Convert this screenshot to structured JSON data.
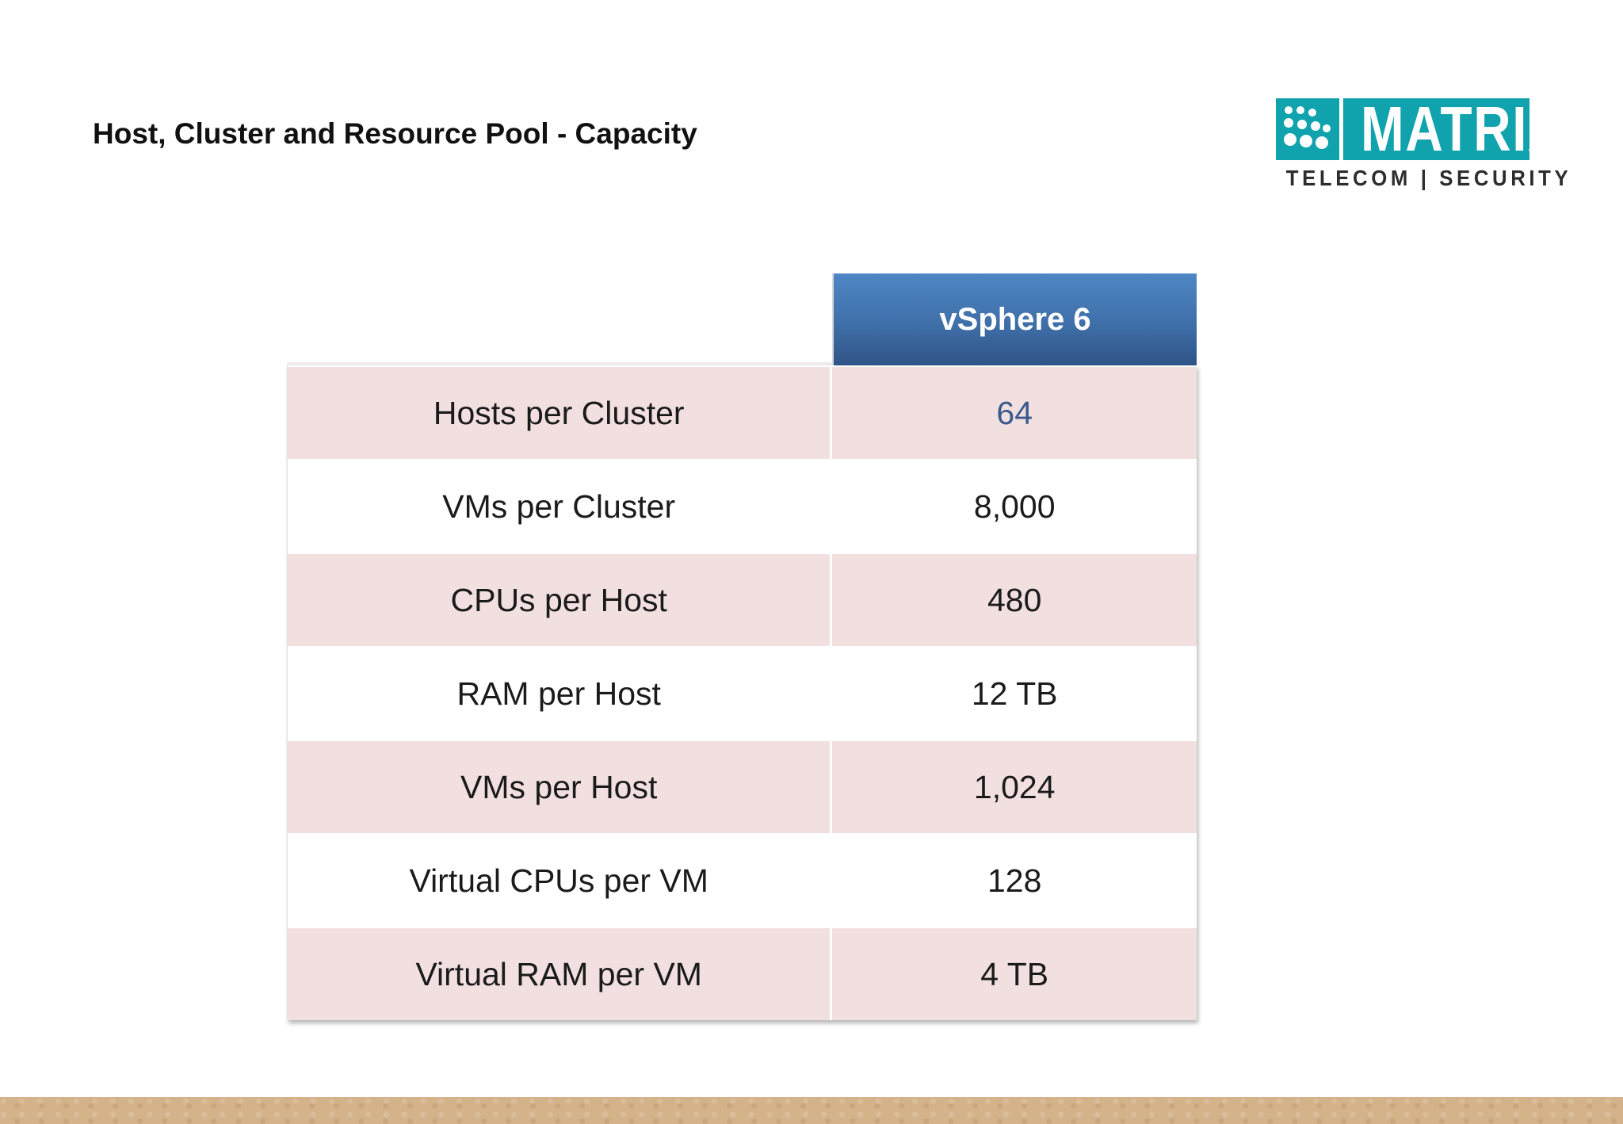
{
  "slide": {
    "title": "Host, Cluster and Resource Pool - Capacity"
  },
  "logo": {
    "brand": "MATRIX",
    "tagline": "TELECOM | SECURITY",
    "color": "#10a3ad"
  },
  "table": {
    "column_header": "vSphere 6",
    "header_color": "#3f6fa8",
    "band_color": "#f2dfe0",
    "rows": [
      {
        "label": "Hosts per Cluster",
        "value": "64"
      },
      {
        "label": "VMs per Cluster",
        "value": "8,000"
      },
      {
        "label": "CPUs per Host",
        "value": "480"
      },
      {
        "label": "RAM per Host",
        "value": "12 TB"
      },
      {
        "label": "VMs per Host",
        "value": "1,024"
      },
      {
        "label": "Virtual CPUs per VM",
        "value": "128"
      },
      {
        "label": "Virtual RAM per VM",
        "value": "4 TB"
      }
    ]
  },
  "footer": {
    "color": "#d4b28a"
  }
}
